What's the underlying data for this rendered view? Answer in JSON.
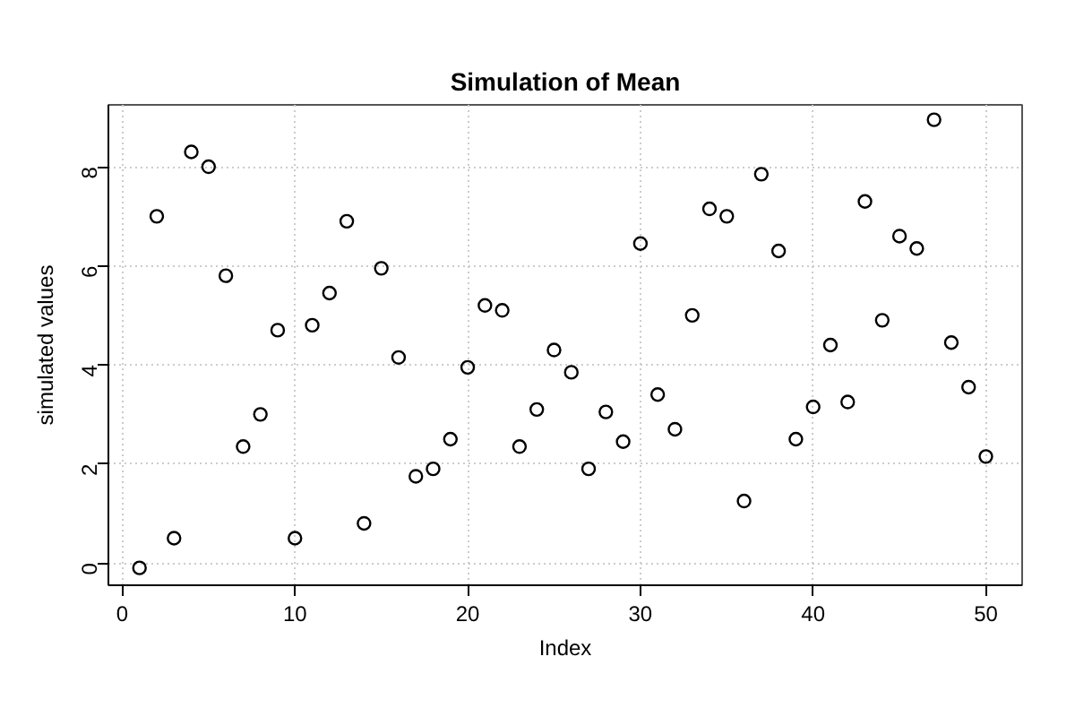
{
  "chart_data": {
    "type": "scatter",
    "title": "Simulation of Mean",
    "xlabel": "Index",
    "ylabel": "simulated values",
    "x": [
      1,
      2,
      3,
      4,
      5,
      6,
      7,
      8,
      9,
      10,
      11,
      12,
      13,
      14,
      15,
      16,
      17,
      18,
      19,
      20,
      21,
      22,
      23,
      24,
      25,
      26,
      27,
      28,
      29,
      30,
      31,
      32,
      33,
      34,
      35,
      36,
      37,
      38,
      39,
      40,
      41,
      42,
      43,
      44,
      45,
      46,
      47,
      48,
      49,
      50
    ],
    "series": [
      {
        "color": "#000000",
        "values": [
          -0.1,
          7.0,
          0.5,
          8.3,
          8.0,
          5.8,
          2.35,
          3.0,
          4.7,
          0.5,
          4.8,
          5.45,
          6.9,
          0.8,
          5.95,
          4.15,
          1.75,
          1.9,
          2.5,
          3.95,
          5.2,
          5.1,
          2.35,
          3.1,
          4.3,
          3.85,
          1.9,
          3.05,
          2.45,
          6.45,
          3.4,
          2.7,
          5.0,
          7.15,
          7.0,
          1.25,
          7.85,
          6.3,
          2.5,
          3.15,
          4.4,
          3.25,
          7.3,
          4.9,
          6.6,
          6.35,
          8.95,
          4.45,
          3.55,
          2.15
        ]
      }
    ],
    "xlim": [
      -0.8,
      52.1
    ],
    "ylim": [
      -0.45,
      9.25
    ],
    "xticks": [
      0,
      10,
      20,
      30,
      40,
      50
    ],
    "yticks": [
      0,
      2,
      4,
      6,
      8
    ],
    "grid": true,
    "marker": "circle"
  }
}
